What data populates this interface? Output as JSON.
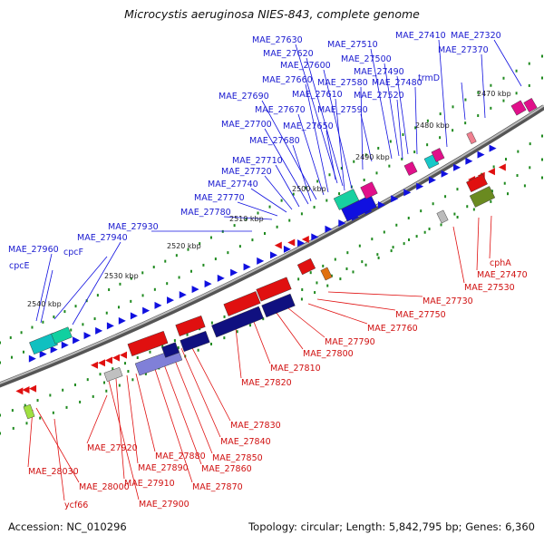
{
  "title": "Microcystis aeruginosa NIES-843, complete genome",
  "footer": {
    "accession": "Accession: NC_010296",
    "summary": "Topology: circular; Length: 5,842,795 bp; Genes: 6,360"
  },
  "colors": {
    "forward_strand": "#1010e0",
    "reverse_strand": "#e01010",
    "backbone": "#777777",
    "tick": "#1f8a1f"
  },
  "position_ticks": [
    "2470 kbp",
    "2480 kbp",
    "2490 kbp",
    "2500 kbp",
    "2510 kbp",
    "2520 kbp",
    "2530 kbp",
    "2540 kbp"
  ],
  "forward_genes": [
    "MAE_27630",
    "MAE_27620",
    "MAE_27600",
    "MAE_27660",
    "MAE_27610",
    "MAE_27690",
    "MAE_27670",
    "MAE_27700",
    "MAE_27680",
    "MAE_27710",
    "MAE_27720",
    "MAE_27740",
    "MAE_27770",
    "MAE_27780",
    "MAE_27930",
    "MAE_27940",
    "MAE_27960",
    "cpcF",
    "cpcE",
    "MAE_27510",
    "MAE_27500",
    "MAE_27490",
    "MAE_27580",
    "MAE_27480",
    "MAE_27520",
    "MAE_27590",
    "MAE_27650",
    "MAE_27410",
    "MAE_27320",
    "MAE_27370",
    "trmD"
  ],
  "reverse_genes": [
    "cphA",
    "MAE_27470",
    "MAE_27530",
    "MAE_27730",
    "MAE_27750",
    "MAE_27760",
    "MAE_27790",
    "MAE_27800",
    "MAE_27810",
    "MAE_27820",
    "MAE_27830",
    "MAE_27840",
    "MAE_27850",
    "MAE_27860",
    "MAE_27870",
    "MAE_27880",
    "MAE_27890",
    "MAE_27910",
    "MAE_27900",
    "MAE_27920",
    "MAE_28000",
    "MAE_28030",
    "ycf66"
  ]
}
